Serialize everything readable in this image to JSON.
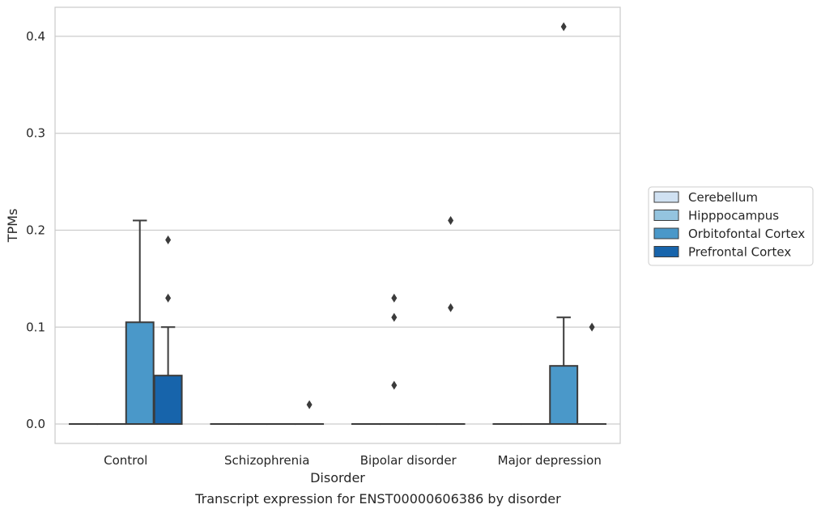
{
  "chart_data": {
    "type": "box",
    "title": "",
    "caption": "Transcript expression for ENST00000606386 by disorder",
    "xlabel": "Disorder",
    "ylabel": "TPMs",
    "ylim": [
      -0.02,
      0.43
    ],
    "yticks": [
      0.0,
      0.1,
      0.2,
      0.3,
      0.4
    ],
    "ytick_labels": [
      "0.0",
      "0.1",
      "0.2",
      "0.3",
      "0.4"
    ],
    "categories": [
      "Control",
      "Schizophrenia",
      "Bipolar disorder",
      "Major depression"
    ],
    "grid": "horizontal",
    "legend_position": "right",
    "series": [
      {
        "name": "Cerebellum",
        "color": "#d0e1f2",
        "boxes": [
          {
            "q1": 0,
            "median": 0,
            "q3": 0,
            "whisker_low": 0,
            "whisker_high": 0,
            "outliers": []
          },
          {
            "q1": 0,
            "median": 0,
            "q3": 0,
            "whisker_low": 0,
            "whisker_high": 0,
            "outliers": []
          },
          {
            "q1": 0,
            "median": 0,
            "q3": 0,
            "whisker_low": 0,
            "whisker_high": 0,
            "outliers": []
          },
          {
            "q1": 0,
            "median": 0,
            "q3": 0,
            "whisker_low": 0,
            "whisker_high": 0,
            "outliers": []
          }
        ]
      },
      {
        "name": "Hipppocampus",
        "color": "#94c4df",
        "boxes": [
          {
            "q1": 0,
            "median": 0,
            "q3": 0,
            "whisker_low": 0,
            "whisker_high": 0,
            "outliers": []
          },
          {
            "q1": 0,
            "median": 0,
            "q3": 0,
            "whisker_low": 0,
            "whisker_high": 0,
            "outliers": []
          },
          {
            "q1": 0,
            "median": 0,
            "q3": 0,
            "whisker_low": 0,
            "whisker_high": 0,
            "outliers": [
              0.13,
              0.11,
              0.04
            ]
          },
          {
            "q1": 0,
            "median": 0,
            "q3": 0,
            "whisker_low": 0,
            "whisker_high": 0,
            "outliers": []
          }
        ]
      },
      {
        "name": "Orbitofontal Cortex",
        "color": "#4a98c9",
        "boxes": [
          {
            "q1": 0,
            "median": 0,
            "q3": 0.105,
            "whisker_low": 0,
            "whisker_high": 0.21,
            "outliers": []
          },
          {
            "q1": 0,
            "median": 0,
            "q3": 0,
            "whisker_low": 0,
            "whisker_high": 0,
            "outliers": []
          },
          {
            "q1": 0,
            "median": 0,
            "q3": 0,
            "whisker_low": 0,
            "whisker_high": 0,
            "outliers": []
          },
          {
            "q1": 0,
            "median": 0,
            "q3": 0.06,
            "whisker_low": 0,
            "whisker_high": 0.11,
            "outliers": [
              0.41
            ]
          }
        ]
      },
      {
        "name": "Prefrontal Cortex",
        "color": "#1764ab",
        "boxes": [
          {
            "q1": 0,
            "median": 0,
            "q3": 0.05,
            "whisker_low": 0,
            "whisker_high": 0.1,
            "outliers": [
              0.19,
              0.13
            ]
          },
          {
            "q1": 0,
            "median": 0,
            "q3": 0,
            "whisker_low": 0,
            "whisker_high": 0,
            "outliers": [
              0.02
            ]
          },
          {
            "q1": 0,
            "median": 0,
            "q3": 0,
            "whisker_low": 0,
            "whisker_high": 0,
            "outliers": [
              0.21,
              0.12
            ]
          },
          {
            "q1": 0,
            "median": 0,
            "q3": 0,
            "whisker_low": 0,
            "whisker_high": 0,
            "outliers": [
              0.1
            ]
          }
        ]
      }
    ]
  }
}
